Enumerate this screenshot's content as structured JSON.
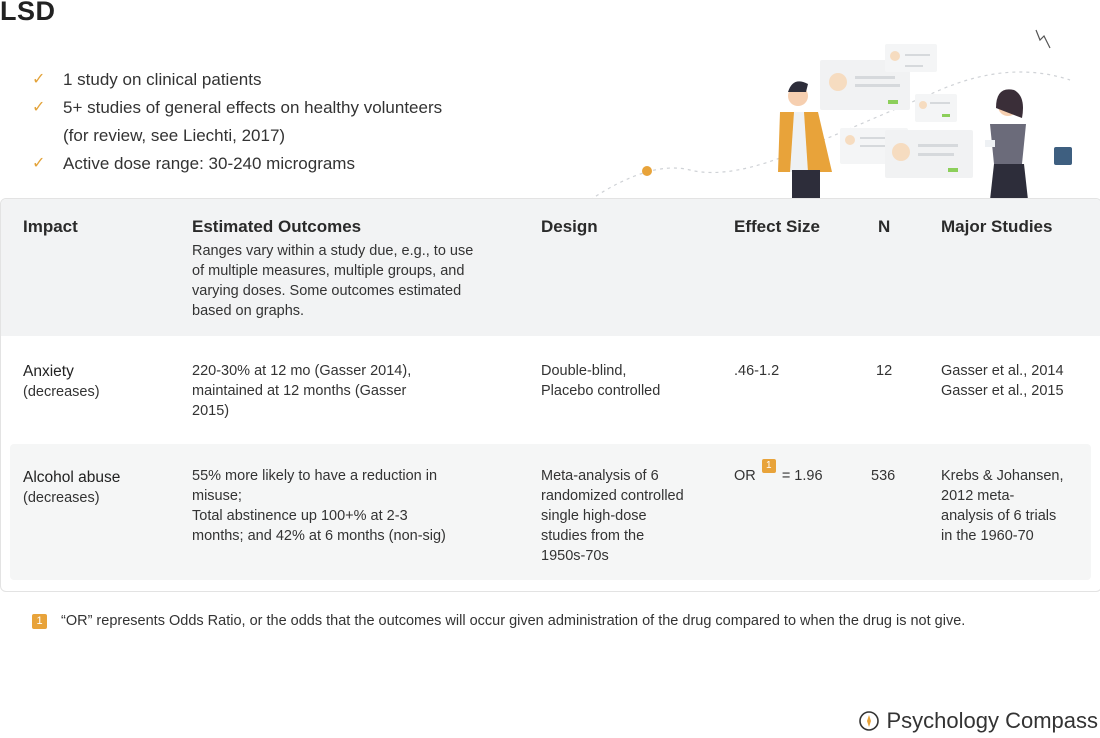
{
  "title": "LSD",
  "bullets": [
    "1 study on clinical patients",
    "5+ studies of general effects on healthy volunteers\n(for review, see Liechti, 2017)",
    "Active dose range: 30-240 micrograms"
  ],
  "table": {
    "headers": {
      "impact": "Impact",
      "outcomes": "Estimated Outcomes",
      "outcomes_note": "Ranges vary within a study due, e.g., to use of multiple measures, multiple groups, and varying doses. Some outcomes estimated based on graphs.",
      "design": "Design",
      "effect": "Effect Size",
      "n": "N",
      "studies": "Major Studies"
    },
    "rows": [
      {
        "impact": "Anxiety",
        "direction": "(decreases)",
        "outcomes": "220-30% at 12 mo (Gasser 2014),\nmaintained at 12 months (Gasser\n2015)",
        "design": "Double-blind,\nPlacebo controlled",
        "effect": ".46-1.2",
        "n": "12",
        "studies": "Gasser et al., 2014\nGasser et al., 2015"
      },
      {
        "impact": "Alcohol abuse",
        "direction": "(decreases)",
        "outcomes": "55% more likely to have a reduction in\nmisuse;\nTotal abstinence up 100+% at 2-3\nmonths; and 42% at 6 months (non-sig)",
        "design": "Meta-analysis of 6\nrandomized controlled\nsingle high-dose\nstudies from the\n1950s-70s",
        "effect_prefix": "OR",
        "effect_note": "1",
        "effect_suffix": "= 1.96",
        "n": "536",
        "studies": "Krebs & Johansen,\n2012 meta-\nanalysis of 6 trials\nin the 1960-70"
      }
    ]
  },
  "footnote": {
    "badge": "1",
    "text": "“OR” represents Odds Ratio, or the odds that the outcomes will occur given administration of the drug compared to when the drug is not give."
  },
  "brand": "Psychology Compass",
  "colors": {
    "accent": "#e8a33a",
    "header_bg": "#f2f3f4",
    "row_bg": "#f5f6f6"
  }
}
